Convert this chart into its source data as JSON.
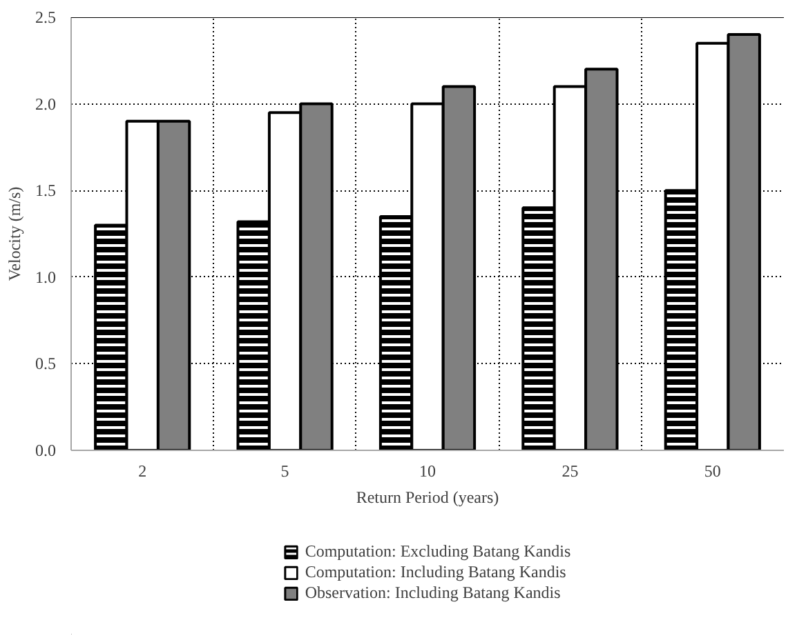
{
  "chart_data": {
    "type": "bar",
    "xlabel": "Return Period (years)",
    "ylabel": "Velocity (m/s)",
    "categories": [
      "2",
      "5",
      "10",
      "25",
      "50"
    ],
    "series": [
      {
        "name": "Computation: Excluding Batang Kandis",
        "color": "#000000",
        "values": [
          1.3,
          1.32,
          1.35,
          1.4,
          1.5
        ]
      },
      {
        "name": "Computation: Including Batang Kandis",
        "color": "#ffffff",
        "values": [
          1.9,
          1.95,
          2.0,
          2.1,
          2.35
        ]
      },
      {
        "name": "Observation: Including Batang Kandis",
        "color": "#808080",
        "values": [
          1.9,
          2.0,
          2.1,
          2.2,
          2.4
        ]
      }
    ],
    "ylim": [
      0,
      2.5
    ],
    "yticks": [
      {
        "value": 0,
        "label": "0.0"
      },
      {
        "value": 0.5,
        "label": "0.5"
      },
      {
        "value": 1,
        "label": "1.0"
      },
      {
        "value": 1.5,
        "label": "1.5"
      },
      {
        "value": 2,
        "label": "2.0"
      },
      {
        "value": 2.5,
        "label": "2.5"
      }
    ],
    "grid": true,
    "legend": "bottom"
  }
}
